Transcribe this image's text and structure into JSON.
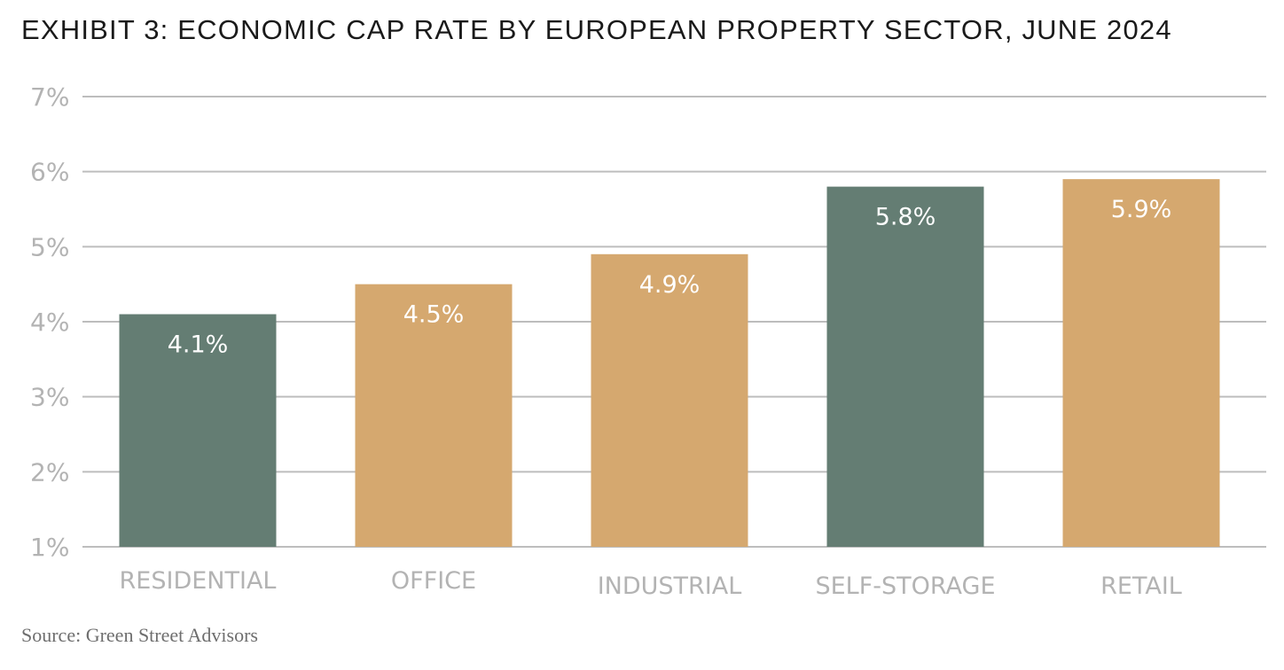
{
  "title": "EXHIBIT 3: ECONOMIC CAP RATE BY EUROPEAN PROPERTY SECTOR, JUNE 2024",
  "source": "Source: Green Street Advisors",
  "colors": {
    "green": "#647d73",
    "tan": "#d5a86f",
    "grid": "#bdbdbd",
    "axis_text": "#b3b3b3",
    "bar_label": "#ffffff"
  },
  "chart_data": {
    "type": "bar",
    "categories": [
      "RESIDENTIAL",
      "OFFICE",
      "INDUSTRIAL",
      "SELF-STORAGE",
      "RETAIL"
    ],
    "values": [
      4.1,
      4.5,
      4.9,
      5.8,
      5.9
    ],
    "data_labels": [
      "4.1%",
      "4.5%",
      "4.9%",
      "5.8%",
      "5.9%"
    ],
    "bar_colors": [
      "#647d73",
      "#d5a86f",
      "#d5a86f",
      "#647d73",
      "#d5a86f"
    ],
    "yticks": [
      1,
      2,
      3,
      4,
      5,
      6,
      7
    ],
    "ytick_labels": [
      "1%",
      "2%",
      "3%",
      "4%",
      "5%",
      "6%",
      "7%"
    ],
    "ylim": [
      1,
      7
    ],
    "grid": true,
    "title": "EXHIBIT 3: ECONOMIC CAP RATE BY EUROPEAN PROPERTY SECTOR, JUNE 2024",
    "xlabel": "",
    "ylabel": ""
  }
}
